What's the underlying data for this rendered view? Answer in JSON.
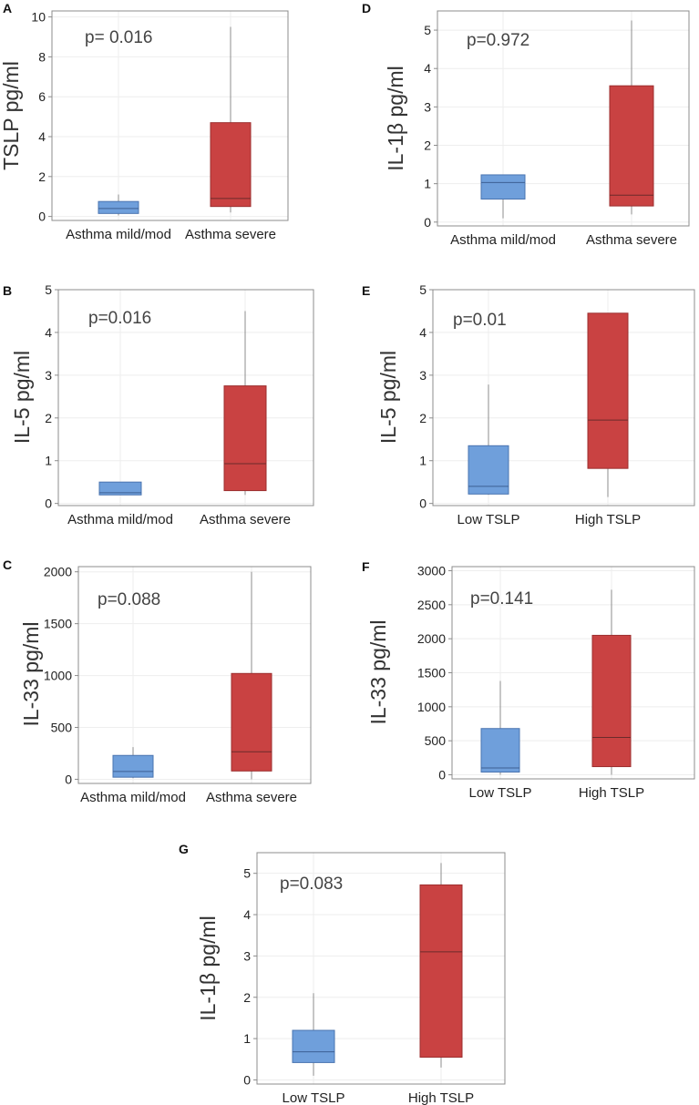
{
  "figure": {
    "panel_count": 7
  },
  "colors": {
    "low": "#6f9fdb",
    "low_stroke": "#4a74b0",
    "high": "#c94242",
    "high_stroke": "#9c2e2e",
    "whisker": "#8c8c8c",
    "frame": "#8c8c8c",
    "grid": "#eeeeee",
    "median": "#6b2b2b",
    "median_low": "#3c5f93",
    "text": "#222222",
    "pval": "#444444"
  },
  "chart_data": [
    {
      "panel": "A",
      "type": "box",
      "ylabel": "TSLP pg/ml",
      "pvalue": "p= 0.016",
      "ylim": [
        -0.2,
        10.3
      ],
      "yticks": [
        0,
        2,
        4,
        6,
        8,
        10
      ],
      "categories": [
        "Asthma mild/mod",
        "Asthma severe"
      ],
      "boxes": [
        {
          "name": "Asthma mild/mod",
          "min": 0.05,
          "q1": 0.15,
          "median": 0.4,
          "q3": 0.75,
          "max": 1.1
        },
        {
          "name": "Asthma severe",
          "min": 0.2,
          "q1": 0.5,
          "median": 0.9,
          "q3": 4.7,
          "max": 9.5
        }
      ]
    },
    {
      "panel": "D",
      "type": "box",
      "ylabel": "IL-1β pg/ml",
      "pvalue": "p=0.972",
      "ylim": [
        -0.1,
        5.5
      ],
      "yticks": [
        0,
        1,
        2,
        3,
        4,
        5
      ],
      "categories": [
        "Asthma mild/mod",
        "Asthma severe"
      ],
      "boxes": [
        {
          "name": "Asthma mild/mod",
          "min": 0.1,
          "q1": 0.6,
          "median": 1.03,
          "q3": 1.23,
          "max": 1.23
        },
        {
          "name": "Asthma severe",
          "min": 0.2,
          "q1": 0.42,
          "median": 0.7,
          "q3": 3.55,
          "max": 5.25
        }
      ]
    },
    {
      "panel": "B",
      "type": "box",
      "ylabel": "IL-5 pg/ml",
      "pvalue": "p=0.016",
      "ylim": [
        -0.05,
        5.0
      ],
      "yticks": [
        0,
        1,
        2,
        3,
        4,
        5
      ],
      "categories": [
        "Asthma mild/mod",
        "Asthma severe"
      ],
      "boxes": [
        {
          "name": "Asthma mild/mod",
          "min": 0.2,
          "q1": 0.2,
          "median": 0.25,
          "q3": 0.5,
          "max": 0.5
        },
        {
          "name": "Asthma severe",
          "min": 0.2,
          "q1": 0.3,
          "median": 0.93,
          "q3": 2.75,
          "max": 4.5
        }
      ]
    },
    {
      "panel": "E",
      "type": "box",
      "ylabel": "IL-5 pg/ml",
      "pvalue": "p=0.01",
      "ylim": [
        -0.05,
        5.0
      ],
      "yticks": [
        0,
        1,
        2,
        3,
        4,
        5
      ],
      "categories": [
        "Low TSLP",
        "High TSLP"
      ],
      "boxes": [
        {
          "name": "Low TSLP",
          "min": 0.2,
          "q1": 0.22,
          "median": 0.4,
          "q3": 1.35,
          "max": 2.78
        },
        {
          "name": "High TSLP",
          "min": 0.15,
          "q1": 0.82,
          "median": 1.95,
          "q3": 4.45,
          "max": 4.45
        }
      ]
    },
    {
      "panel": "C",
      "type": "box",
      "ylabel": "IL-33 pg/ml",
      "pvalue": "p=0.088",
      "ylim": [
        -40,
        2050
      ],
      "yticks": [
        0,
        500,
        1000,
        1500,
        2000
      ],
      "categories": [
        "Asthma mild/mod",
        "Asthma severe"
      ],
      "boxes": [
        {
          "name": "Asthma mild/mod",
          "min": 10,
          "q1": 20,
          "median": 75,
          "q3": 230,
          "max": 310
        },
        {
          "name": "Asthma severe",
          "min": 0,
          "q1": 80,
          "median": 265,
          "q3": 1020,
          "max": 2000
        }
      ]
    },
    {
      "panel": "F",
      "type": "box",
      "ylabel": "IL-33 pg/ml",
      "pvalue": "p=0.141",
      "ylim": [
        -60,
        3060
      ],
      "yticks": [
        0,
        500,
        1000,
        1500,
        2000,
        2500,
        3000
      ],
      "categories": [
        "Low TSLP",
        "High TSLP"
      ],
      "boxes": [
        {
          "name": "Low TSLP",
          "min": 0,
          "q1": 40,
          "median": 100,
          "q3": 680,
          "max": 1380
        },
        {
          "name": "High TSLP",
          "min": 0,
          "q1": 120,
          "median": 550,
          "q3": 2050,
          "max": 2720
        }
      ]
    },
    {
      "panel": "G",
      "type": "box",
      "ylabel": "IL-1β pg/ml",
      "pvalue": "p=0.083",
      "ylim": [
        -0.1,
        5.5
      ],
      "yticks": [
        0,
        1,
        2,
        3,
        4,
        5
      ],
      "categories": [
        "Low TSLP",
        "High TSLP"
      ],
      "boxes": [
        {
          "name": "Low TSLP",
          "min": 0.1,
          "q1": 0.42,
          "median": 0.68,
          "q3": 1.2,
          "max": 2.1
        },
        {
          "name": "High TSLP",
          "min": 0.3,
          "q1": 0.55,
          "median": 3.1,
          "q3": 4.72,
          "max": 5.25
        }
      ]
    }
  ]
}
